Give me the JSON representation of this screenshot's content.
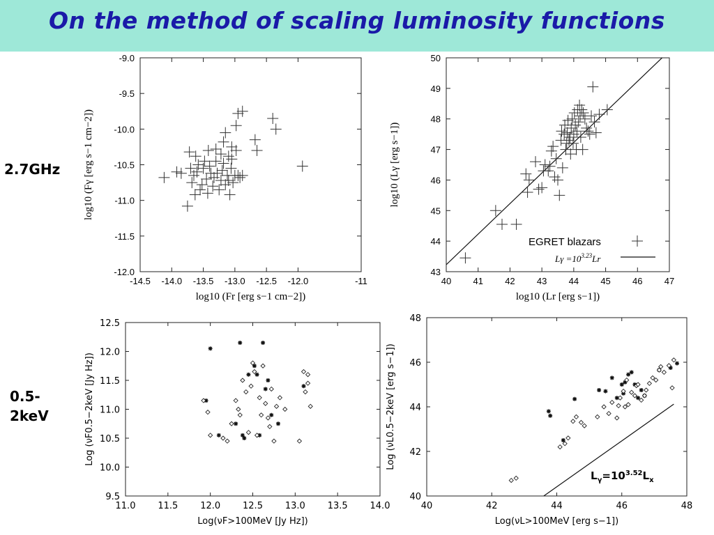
{
  "slide": {
    "title": "On the method of scaling luminosity functions",
    "row_labels": [
      "2.7GHz",
      "0.5-",
      "2keV"
    ]
  },
  "chart_data": [
    {
      "type": "scatter",
      "xlabel": "log10 (Fr [erg s−1 cm−2])",
      "ylabel": "log10 (Fγ [erg s−1 cm−2])",
      "xlim": [
        -14.5,
        -11
      ],
      "ylim": [
        -12.0,
        -9.0
      ],
      "xticks": [
        "-14.5",
        "-14.0",
        "-13.5",
        "-13.0",
        "-12.5",
        "-12.0",
        "-11"
      ],
      "xtick_values": [
        -14.5,
        -14.0,
        -13.5,
        -13.0,
        -12.5,
        -12.0,
        -11.0
      ],
      "yticks": [
        "-9.0",
        "-9.5",
        "-10.0",
        "-10.5",
        "-11.0",
        "-11.5",
        "-12.0"
      ],
      "ytick_values": [
        -9.0,
        -9.5,
        -10.0,
        -10.5,
        -11.0,
        -11.5,
        -12.0
      ],
      "grid": false,
      "series": [
        {
          "marker": "plus",
          "x": [
            -14.12,
            -13.92,
            -13.85,
            -13.75,
            -13.7,
            -13.68,
            -13.65,
            -13.63,
            -13.6,
            -13.58,
            -13.55,
            -13.52,
            -13.5,
            -13.48,
            -13.45,
            -13.43,
            -13.4,
            -13.38,
            -13.35,
            -13.33,
            -13.3,
            -13.28,
            -13.25,
            -13.22,
            -13.2,
            -13.18,
            -13.15,
            -13.12,
            -13.1,
            -13.08,
            -13.06,
            -13.05,
            -13.03,
            -13.0,
            -13.15,
            -13.72,
            -13.62,
            -13.42,
            -13.3,
            -13.22,
            -13.1,
            -13.05,
            -12.98,
            -12.95,
            -12.92,
            -12.88,
            -13.18,
            -12.98,
            -12.68,
            -12.65,
            -12.4,
            -12.35,
            -11.93
          ],
          "y": [
            -10.68,
            -10.6,
            -10.62,
            -11.08,
            -10.55,
            -10.75,
            -10.65,
            -10.92,
            -10.6,
            -10.5,
            -10.85,
            -10.78,
            -10.55,
            -10.45,
            -10.7,
            -10.9,
            -10.52,
            -10.62,
            -10.8,
            -10.68,
            -10.45,
            -10.62,
            -10.85,
            -10.72,
            -10.58,
            -10.48,
            -10.78,
            -10.65,
            -10.72,
            -10.92,
            -10.55,
            -10.42,
            -10.75,
            -10.65,
            -10.05,
            -10.32,
            -10.38,
            -10.3,
            -10.28,
            -10.35,
            -10.38,
            -10.25,
            -10.3,
            -10.65,
            -10.68,
            -10.65,
            -10.18,
            -9.95,
            -10.15,
            -10.3,
            -9.85,
            -10.0,
            -10.52
          ]
        },
        {
          "marker": "plus",
          "x": [
            -12.95,
            -12.88
          ],
          "y": [
            -9.78,
            -9.75
          ]
        }
      ]
    },
    {
      "type": "scatter",
      "xlabel": "log10 (Lr [erg s−1])",
      "ylabel": "log10 (Lγ [erg s−1])",
      "xlim": [
        40,
        47
      ],
      "ylim": [
        43,
        50
      ],
      "xticks": [
        "40",
        "41",
        "42",
        "43",
        "44",
        "45",
        "46",
        "47"
      ],
      "xtick_values": [
        40,
        41,
        42,
        43,
        44,
        45,
        46,
        47
      ],
      "yticks": [
        "43",
        "44",
        "45",
        "46",
        "47",
        "48",
        "49",
        "50"
      ],
      "ytick_values": [
        43,
        44,
        45,
        46,
        47,
        48,
        49,
        50
      ],
      "grid": false,
      "legend": {
        "position": "bottom-right",
        "entries": [
          "EGRET blazars",
          "Lγ =10^3.23 Lr"
        ]
      },
      "legend_line_prefix": "Lγ =10",
      "legend_line_exp": "3.23",
      "legend_line_suffix": "Lr",
      "fit_line": {
        "x": [
          40,
          47
        ],
        "y": [
          43.23,
          50.23
        ]
      },
      "series": [
        {
          "name": "EGRET blazars",
          "marker": "plus",
          "x": [
            40.6,
            41.55,
            41.75,
            42.2,
            42.5,
            42.55,
            42.6,
            42.8,
            42.9,
            43.0,
            43.05,
            43.1,
            43.2,
            43.25,
            43.3,
            43.35,
            43.4,
            43.45,
            43.5,
            43.55,
            43.6,
            43.62,
            43.65,
            43.7,
            43.72,
            43.75,
            43.78,
            43.8,
            43.82,
            43.85,
            43.88,
            43.9,
            43.92,
            43.95,
            43.98,
            44.0,
            44.02,
            44.05,
            44.08,
            44.1,
            44.12,
            44.15,
            44.18,
            44.2,
            44.22,
            44.25,
            44.28,
            44.3,
            44.35,
            44.4,
            44.45,
            44.5,
            44.55,
            44.6,
            44.65,
            44.7,
            44.8,
            45.05
          ],
          "y": [
            43.45,
            45.0,
            44.55,
            44.55,
            46.2,
            45.6,
            46.0,
            46.6,
            45.7,
            45.75,
            46.3,
            46.5,
            46.3,
            46.45,
            46.95,
            47.1,
            46.1,
            46.7,
            46.0,
            45.5,
            47.3,
            47.6,
            46.4,
            47.5,
            47.8,
            47.0,
            47.2,
            47.55,
            47.95,
            47.3,
            47.4,
            46.85,
            47.7,
            48.0,
            47.2,
            47.5,
            48.2,
            47.8,
            47.0,
            47.6,
            48.3,
            47.9,
            48.45,
            48.1,
            47.4,
            48.3,
            47.0,
            48.2,
            48.0,
            47.7,
            47.6,
            47.5,
            48.1,
            49.05,
            47.9,
            47.55,
            48.15,
            48.3
          ]
        }
      ]
    },
    {
      "type": "scatter",
      "xlabel": "Log(νF>100MeV [Jy Hz])",
      "ylabel": "Log (νF0.5−2keV [Jy Hz])",
      "xlim": [
        11.0,
        14.0
      ],
      "ylim": [
        9.5,
        12.5
      ],
      "xticks": [
        "11.0",
        "11.5",
        "12.0",
        "12.5",
        "13.0",
        "13.5",
        "14.0"
      ],
      "xtick_values": [
        11.0,
        11.5,
        12.0,
        12.5,
        13.0,
        13.5,
        14.0
      ],
      "yticks": [
        "9.5",
        "10.0",
        "10.5",
        "11.0",
        "11.5",
        "12.0",
        "12.5"
      ],
      "ytick_values": [
        9.5,
        10.0,
        10.5,
        11.0,
        11.5,
        12.0,
        12.5
      ],
      "grid": false,
      "series": [
        {
          "marker": "star",
          "x": [
            11.95,
            12.0,
            12.1,
            12.3,
            12.35,
            12.38,
            12.4,
            12.45,
            12.52,
            12.55,
            12.58,
            12.62,
            12.65,
            12.68,
            12.72,
            12.8,
            13.1
          ],
          "y": [
            11.15,
            12.05,
            10.55,
            10.75,
            12.15,
            10.55,
            10.5,
            11.6,
            11.75,
            11.6,
            10.55,
            12.15,
            11.35,
            11.5,
            10.9,
            10.75,
            11.4
          ]
        },
        {
          "marker": "diamond",
          "x": [
            11.92,
            11.97,
            12.0,
            12.15,
            12.2,
            12.25,
            12.3,
            12.33,
            12.35,
            12.38,
            12.42,
            12.45,
            12.48,
            12.5,
            12.52,
            12.55,
            12.58,
            12.6,
            12.62,
            12.65,
            12.68,
            12.7,
            12.72,
            12.75,
            12.78,
            12.82,
            12.88,
            13.05,
            13.1,
            13.12,
            13.15,
            13.15,
            13.18
          ],
          "y": [
            11.15,
            10.95,
            10.55,
            10.5,
            10.45,
            10.75,
            11.15,
            11.0,
            10.9,
            11.5,
            11.3,
            10.6,
            11.4,
            11.8,
            11.65,
            10.55,
            11.2,
            10.9,
            11.75,
            11.1,
            10.85,
            10.7,
            11.35,
            10.45,
            11.05,
            11.2,
            11.0,
            10.45,
            11.65,
            11.3,
            11.6,
            11.45,
            11.05
          ]
        }
      ]
    },
    {
      "type": "scatter",
      "xlabel": "Log(νL>100MeV [erg s−1])",
      "ylabel": "Log (νL0.5−2keV [erg s−1])",
      "xlim": [
        40,
        48
      ],
      "ylim": [
        40,
        48
      ],
      "xticks": [
        "40",
        "42",
        "44",
        "46",
        "48"
      ],
      "xtick_values": [
        40,
        42,
        44,
        46,
        48
      ],
      "yticks": [
        "40",
        "42",
        "44",
        "46",
        "48"
      ],
      "ytick_values": [
        40,
        42,
        44,
        46,
        48
      ],
      "grid": false,
      "annotation_prefix": "L",
      "annotation_sub": "γ",
      "annotation_mid": "=10",
      "annotation_exp": "3.52",
      "annotation_tail": "L",
      "annotation_tail_sub": "x",
      "fit_line": {
        "x": [
          43.6,
          47.6
        ],
        "y": [
          40.0,
          44.12
        ]
      },
      "series": [
        {
          "marker": "star",
          "x": [
            43.75,
            43.8,
            44.2,
            44.55,
            45.3,
            45.5,
            45.7,
            45.85,
            46.0,
            46.05,
            46.1,
            46.2,
            46.3,
            46.4,
            46.5,
            46.6,
            46.7,
            47.15,
            47.5,
            47.7
          ],
          "y": [
            43.8,
            43.6,
            42.5,
            44.35,
            44.75,
            44.7,
            45.3,
            44.4,
            45.0,
            44.6,
            45.1,
            45.45,
            45.55,
            45.0,
            44.4,
            44.75,
            44.5,
            45.65,
            45.75,
            45.95
          ]
        },
        {
          "marker": "diamond",
          "x": [
            42.6,
            42.75,
            44.1,
            44.25,
            44.35,
            44.5,
            44.6,
            44.75,
            44.85,
            45.25,
            45.45,
            45.6,
            45.7,
            45.85,
            45.9,
            45.95,
            46.05,
            46.1,
            46.15,
            46.2,
            46.3,
            46.4,
            46.45,
            46.5,
            46.6,
            46.7,
            46.75,
            46.85,
            46.95,
            47.05,
            47.15,
            47.2,
            47.3,
            47.45,
            47.55,
            47.6
          ],
          "y": [
            40.7,
            40.8,
            42.2,
            42.35,
            42.6,
            43.35,
            43.55,
            43.3,
            43.15,
            43.55,
            44.0,
            43.7,
            44.2,
            43.5,
            44.05,
            44.4,
            44.7,
            44.0,
            45.2,
            44.1,
            44.65,
            44.5,
            44.95,
            45.0,
            44.3,
            44.5,
            44.75,
            45.05,
            45.3,
            45.2,
            45.65,
            45.8,
            45.55,
            45.85,
            44.85,
            46.1
          ]
        }
      ]
    }
  ]
}
